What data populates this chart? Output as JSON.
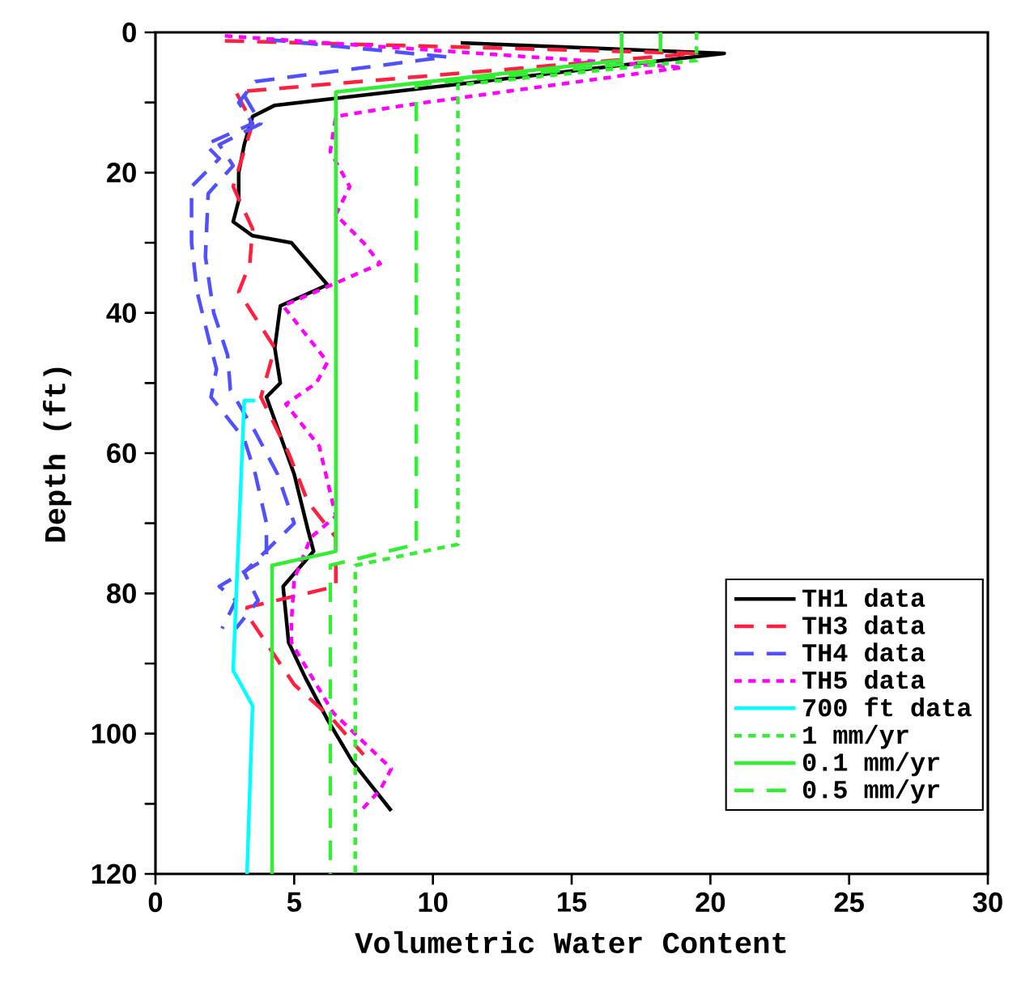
{
  "chart_data": {
    "type": "line",
    "xlabel": "Volumetric Water Content",
    "ylabel": "Depth (ft)",
    "xlim": [
      0,
      30
    ],
    "xticks": [
      0,
      5,
      10,
      15,
      20,
      25,
      30
    ],
    "ylim": [
      120,
      0
    ],
    "yticks": [
      0,
      {
        "value": 10,
        "label": null
      },
      20,
      {
        "value": 30,
        "label": null
      },
      40,
      {
        "value": 50,
        "label": null
      },
      60,
      {
        "value": 70,
        "label": null
      },
      80,
      {
        "value": 90,
        "label": null
      },
      100,
      {
        "value": 110,
        "label": null
      },
      120
    ],
    "legend": "bottom right",
    "grid": false,
    "marker": "none",
    "series": [
      {
        "name": "TH1 data",
        "color": "#000000",
        "line_style": "solid",
        "x": [
          11,
          20.5,
          4.3,
          3.5,
          3.2,
          3.0,
          3.0,
          2.8,
          3.5,
          4.9,
          6.2,
          4.5,
          4.3,
          4.5,
          4.0,
          5.0,
          5.5,
          5.7,
          4.6,
          4.7,
          4.8,
          5.4,
          6.2,
          7.1,
          8.5
        ],
        "values": [
          1.5,
          3,
          10.4,
          12,
          16,
          20,
          24,
          27,
          29,
          30,
          36,
          39,
          45,
          50,
          52,
          63,
          71,
          74,
          79,
          83,
          87,
          92,
          98,
          104,
          111
        ]
      },
      {
        "name": "TH3 data",
        "color": "#ff2040",
        "line_style": "dashed",
        "x": [
          2.5,
          19.5,
          2.9,
          3.5,
          2.8,
          3.5,
          3.4,
          3.0,
          4.3,
          3.8,
          4.8,
          5.5,
          6.5,
          6.5,
          3.3,
          3.3,
          5.0,
          6.4,
          7.5
        ],
        "values": [
          1.2,
          3,
          8.5,
          13,
          22,
          28,
          33,
          37,
          45,
          52,
          60,
          67,
          72,
          79,
          82,
          83,
          93,
          98,
          103
        ]
      },
      {
        "name": "TH4 data",
        "color": "#5050ff",
        "line_style": "dashed",
        "x": [
          4.0,
          10.5,
          3.6,
          3.0,
          3.5,
          1.8,
          2.3,
          1.3,
          1.3,
          1.5,
          2.0,
          2.2,
          2.0,
          3.2,
          3.6,
          4.0,
          4.0,
          2.3,
          2.9,
          2.4
        ],
        "values": [
          1,
          3.5,
          7,
          10,
          13,
          16,
          18,
          22,
          30,
          37,
          45,
          48,
          52,
          58,
          63,
          70,
          75,
          79,
          81,
          85
        ]
      },
      {
        "color": "#5050ff",
        "line_style": "dashed",
        "x": [
          3.2,
          3.8,
          2.3,
          2.8,
          1.9,
          1.8,
          2.1,
          2.6,
          2.7,
          3.6,
          4.4,
          5.0,
          3.2,
          3.7,
          2.9
        ],
        "values": [
          9,
          13,
          16,
          19,
          23,
          32,
          40,
          46,
          51,
          57,
          63,
          70,
          77,
          81,
          85
        ]
      },
      {
        "name": "TH5 data",
        "color": "#ff00ff",
        "line_style": "dotted",
        "x": [
          2.5,
          19,
          9.0,
          6.5,
          6.3,
          7.0,
          6.5,
          7.5,
          8.1,
          4.6,
          5.2,
          6.2,
          5.8,
          4.7,
          5.9,
          6.5,
          5.6,
          5.0,
          4.9,
          4.9,
          6.4,
          8.5,
          8.1,
          7.4
        ],
        "values": [
          0.5,
          5,
          10.4,
          12,
          17,
          22,
          26,
          30,
          33,
          39,
          42,
          47,
          50,
          53,
          59,
          69,
          72,
          78,
          84,
          87,
          97,
          105,
          108,
          111
        ]
      },
      {
        "name": "700 ft data",
        "color": "#00ffff",
        "line_style": "solid",
        "x": [
          3.6,
          3.2,
          2.8,
          3.5,
          3.3
        ],
        "values": [
          52.5,
          52.5,
          91,
          96,
          120
        ]
      },
      {
        "name": "1 mm/yr",
        "color": "#33ee33",
        "line_style": "dotted",
        "x": [
          19.5,
          19.5,
          10.9,
          10.9,
          7.2,
          7.2
        ],
        "values": [
          0,
          4,
          7.5,
          73,
          76,
          120
        ]
      },
      {
        "name": "0.1 mm/yr",
        "color": "#33ee33",
        "line_style": "solid",
        "x": [
          16.8,
          16.8,
          6.5,
          6.5,
          4.2,
          4.2
        ],
        "values": [
          0,
          4,
          8.5,
          74,
          76,
          120
        ]
      },
      {
        "name": "0.5 mm/yr",
        "color": "#33ee33",
        "line_style": "dashed",
        "x": [
          18.2,
          18.2,
          9.4,
          9.4,
          6.3,
          6.3
        ],
        "values": [
          0,
          4,
          7.5,
          73,
          76,
          120
        ]
      }
    ]
  }
}
